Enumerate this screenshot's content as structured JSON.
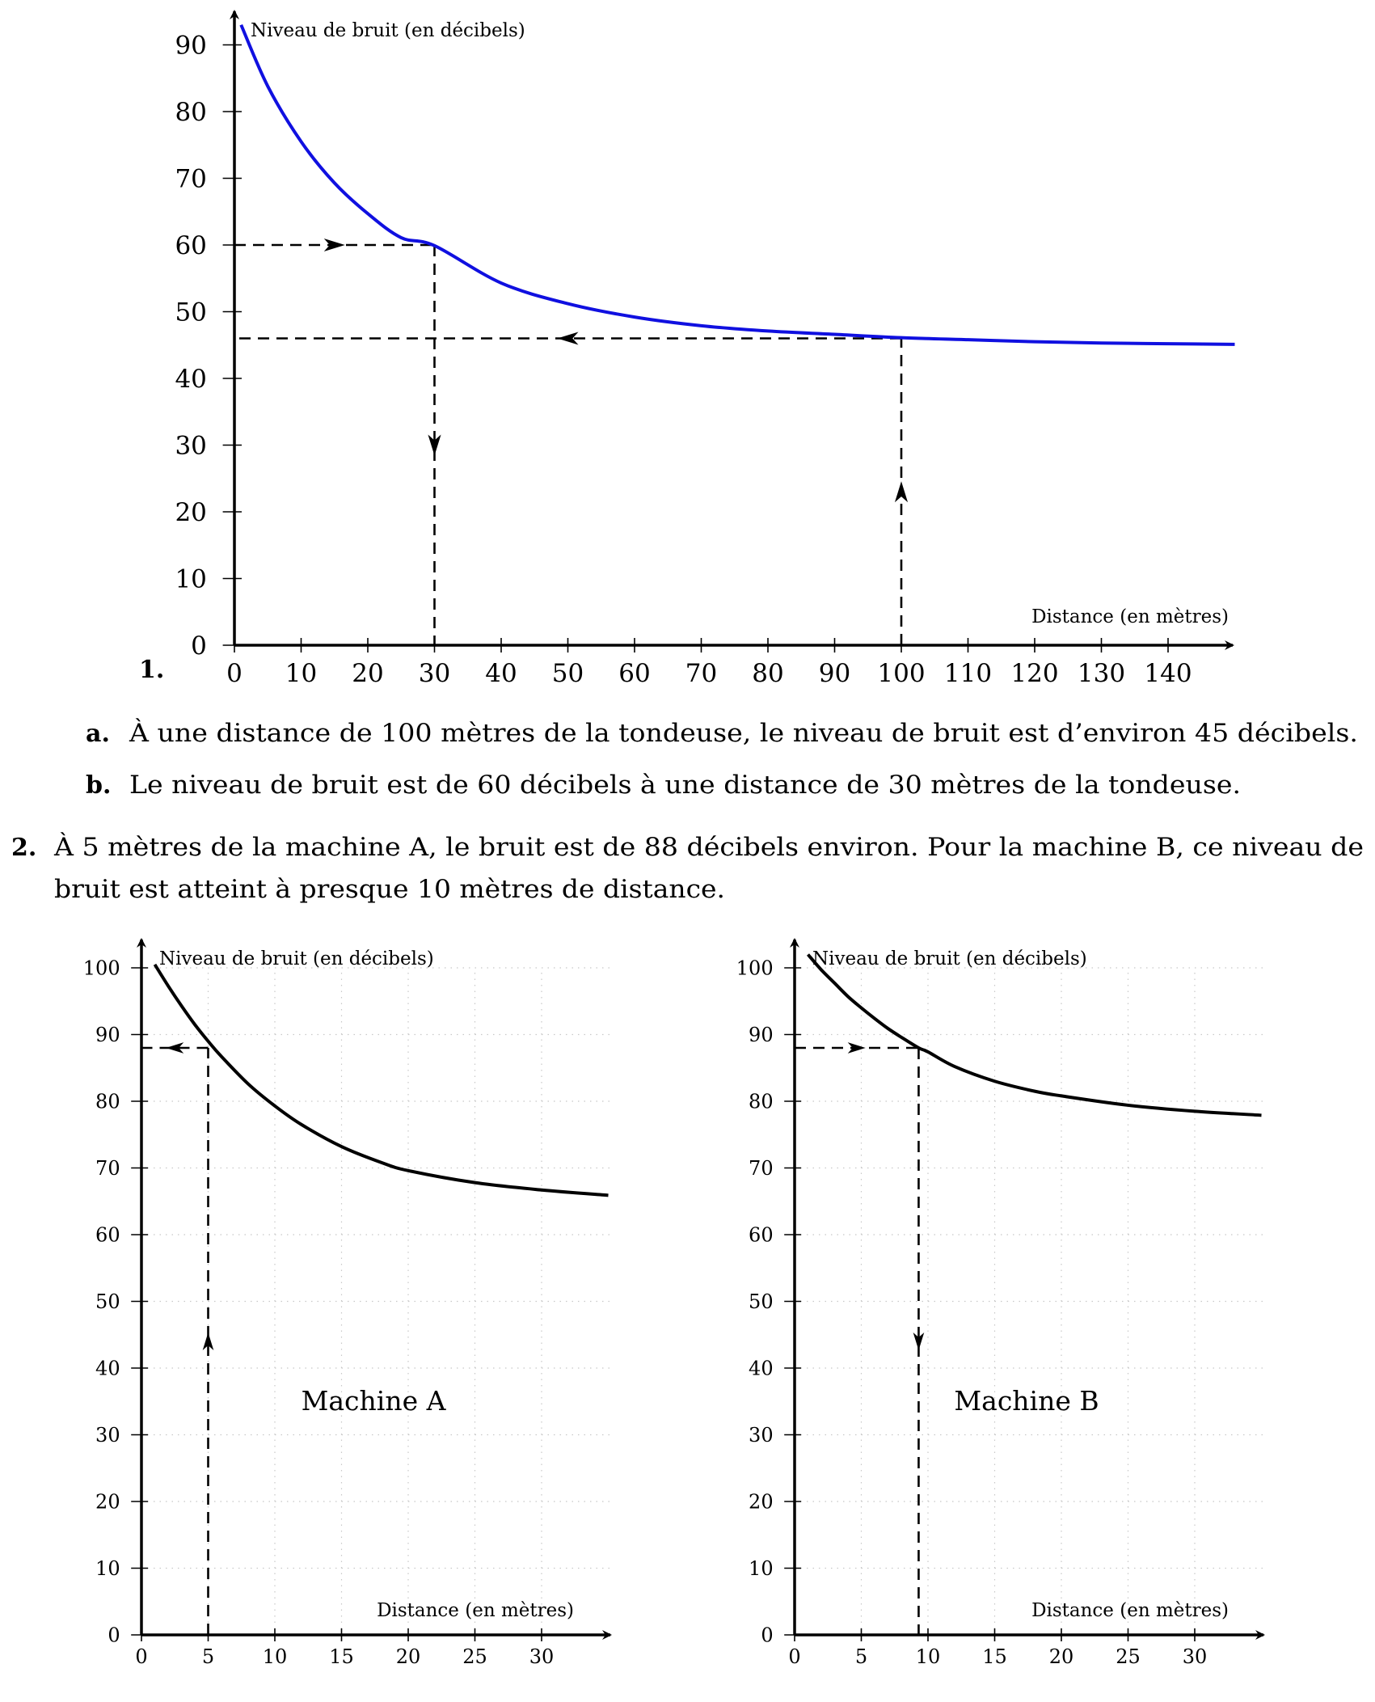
{
  "question1": {
    "number": "1.",
    "items": [
      {
        "letter": "a.",
        "text": "À une distance de 100 mètres de la tondeuse, le niveau de bruit est d’environ 45 décibels."
      },
      {
        "letter": "b.",
        "text": "Le niveau de bruit est de 60 décibels à une distance de 30 mètres de la tondeuse."
      }
    ]
  },
  "question2": {
    "number": "2.",
    "line1": "À 5 mètres de la machine A, le bruit est de 88 décibels environ. Pour la machine B, ce niveau de",
    "line2": "bruit est atteint à presque 10 mètres de distance."
  },
  "chart_data": [
    {
      "type": "line",
      "ylabel": "Niveau de bruit (en décibels)",
      "xlabel": "Distance (en mètres)",
      "xlim": [
        0,
        150
      ],
      "ylim": [
        0,
        94
      ],
      "xticks": [
        0,
        10,
        20,
        30,
        40,
        50,
        60,
        70,
        80,
        90,
        100,
        110,
        120,
        130,
        140
      ],
      "yticks": [
        0,
        10,
        20,
        30,
        40,
        50,
        60,
        70,
        80,
        90
      ],
      "grid": false,
      "curve_color": "#1010e0",
      "series": [
        {
          "x": [
            1,
            5,
            10,
            15,
            20,
            25,
            30,
            40,
            50,
            60,
            70,
            80,
            90,
            100,
            110,
            120,
            130,
            140,
            150
          ],
          "y": [
            93,
            83.8,
            75.5,
            69.3,
            64.7,
            61.1,
            59.9,
            54.3,
            51.2,
            49.2,
            47.9,
            47.1,
            46.6,
            46.1,
            45.8,
            45.5,
            45.3,
            45.2,
            45.1
          ]
        }
      ],
      "guides": [
        {
          "from": [
            0,
            60
          ],
          "to": [
            30,
            60
          ],
          "arrow": "right"
        },
        {
          "from": [
            30,
            60
          ],
          "to": [
            30,
            0
          ],
          "arrow": "down"
        },
        {
          "from": [
            100,
            0
          ],
          "to": [
            100,
            46
          ],
          "arrow": "up"
        },
        {
          "from": [
            100,
            46
          ],
          "to": [
            0,
            46
          ],
          "arrow": "left"
        }
      ]
    },
    {
      "type": "line",
      "title": "Machine A",
      "ylabel": "Niveau de bruit (en décibels)",
      "xlabel": "Distance (en mètres)",
      "xlim": [
        0,
        35
      ],
      "ylim": [
        0,
        102
      ],
      "xticks": [
        0,
        5,
        10,
        15,
        20,
        25,
        30
      ],
      "yticks": [
        0,
        10,
        20,
        30,
        40,
        50,
        60,
        70,
        80,
        90,
        100
      ],
      "grid": true,
      "curve_color": "#000000",
      "series": [
        {
          "x": [
            1,
            2,
            3,
            4,
            5,
            6,
            8,
            10,
            12,
            15,
            18,
            20,
            25,
            30,
            35
          ],
          "y": [
            100.5,
            97.3,
            94.3,
            91.5,
            89,
            86.7,
            82.6,
            79.3,
            76.5,
            73.2,
            70.8,
            69.6,
            67.8,
            66.7,
            65.9
          ]
        }
      ],
      "guides": [
        {
          "from": [
            5,
            0
          ],
          "to": [
            5,
            88
          ],
          "arrow": "up"
        },
        {
          "from": [
            5,
            88
          ],
          "to": [
            0,
            88
          ],
          "arrow": "left"
        }
      ]
    },
    {
      "type": "line",
      "title": "Machine B",
      "ylabel": "Niveau de bruit (en décibels)",
      "xlabel": "Distance (en mètres)",
      "xlim": [
        0,
        35
      ],
      "ylim": [
        0,
        102
      ],
      "xticks": [
        0,
        5,
        10,
        15,
        20,
        25,
        30
      ],
      "yticks": [
        0,
        10,
        20,
        30,
        40,
        50,
        60,
        70,
        80,
        90,
        100
      ],
      "grid": true,
      "curve_color": "#000000",
      "series": [
        {
          "x": [
            1,
            2,
            3,
            4,
            5,
            6,
            7,
            8,
            9.3,
            10,
            12,
            15,
            18,
            20,
            25,
            30,
            35
          ],
          "y": [
            102,
            99.7,
            97.7,
            95.7,
            94,
            92.4,
            90.9,
            89.6,
            88,
            87.4,
            85.2,
            83,
            81.5,
            80.8,
            79.4,
            78.5,
            77.9
          ]
        }
      ],
      "guides": [
        {
          "from": [
            0,
            88
          ],
          "to": [
            9.3,
            88
          ],
          "arrow": "right"
        },
        {
          "from": [
            9.3,
            88
          ],
          "to": [
            9.3,
            0
          ],
          "arrow": "down"
        }
      ]
    }
  ]
}
